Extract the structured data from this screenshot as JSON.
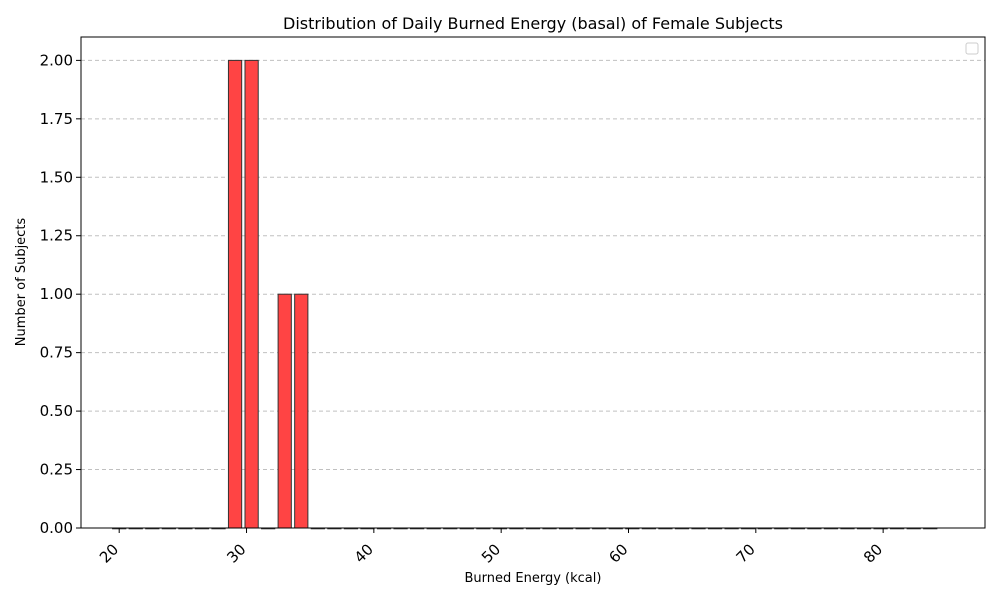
{
  "chart_data": {
    "type": "bar",
    "title": "Distribution of Daily Burned Energy (basal) of Female Subjects",
    "xlabel": "Burned Energy (kcal)",
    "ylabel": "Number of Subjects",
    "xlim": [
      17,
      88
    ],
    "ylim": [
      0,
      2.1
    ],
    "bin_width": 1.3,
    "x": [
      20,
      21.3,
      22.6,
      23.9,
      25.2,
      26.5,
      27.8,
      29.1,
      30.4,
      31.7,
      33.0,
      34.3,
      35.6,
      36.9,
      38.2,
      39.5,
      40.8,
      42.1,
      43.4,
      44.7,
      46.0,
      47.3,
      48.6,
      49.9,
      51.2,
      52.5,
      53.8,
      55.1,
      56.4,
      57.7,
      59.0,
      60.3,
      61.6,
      62.9,
      64.2,
      65.5,
      66.8,
      68.1,
      69.4,
      70.7,
      72.0,
      73.3,
      74.6,
      75.9,
      77.2,
      78.5,
      79.8,
      81.1,
      82.4,
      83.7
    ],
    "values": [
      0,
      0,
      0,
      0,
      0,
      0,
      0,
      2,
      2,
      0,
      1,
      1,
      0,
      0,
      0,
      0,
      0,
      0,
      0,
      0,
      0,
      0,
      0,
      0,
      0,
      0,
      0,
      0,
      0,
      0,
      0,
      0,
      0,
      0,
      0,
      0,
      0,
      0,
      0,
      0,
      0,
      0,
      0,
      0,
      0,
      0,
      0,
      0,
      0,
      0
    ],
    "xticks": [
      "20",
      "30",
      "40",
      "50",
      "60",
      "70",
      "80"
    ],
    "yticks": [
      "0.00",
      "0.25",
      "0.50",
      "0.75",
      "1.00",
      "1.25",
      "1.50",
      "1.75",
      "2.00"
    ],
    "bar_color": "#ff4444",
    "edge_color": "#333333",
    "grid": "y-dashed",
    "legend": "upper-right-empty"
  }
}
